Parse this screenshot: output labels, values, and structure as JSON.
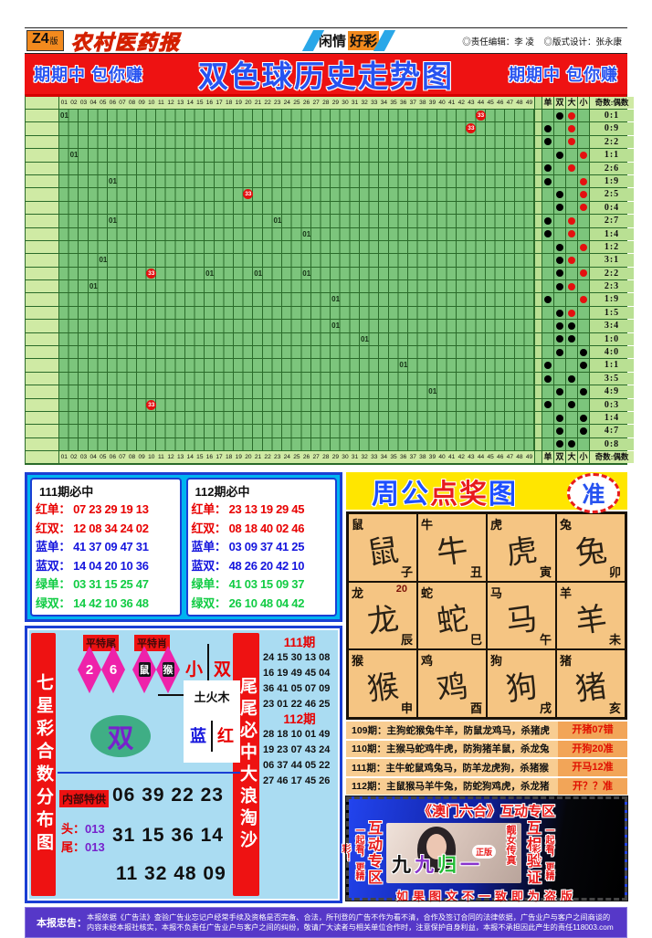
{
  "masthead": {
    "edition": "Z4",
    "edition_suffix": "版",
    "paper_name": "农村医药报",
    "ribbon_left": "闲情",
    "ribbon_right": "好彩",
    "editor": "◎责任编辑：李 凌",
    "designer": "◎版式设计：张永康"
  },
  "banner": {
    "side_left": "期期中 包你赚",
    "title": "双色球历史走势图",
    "side_right": "期期中 包你赚",
    "bg_color": "#ee1212",
    "text_color": "#2753f0"
  },
  "grid": {
    "columns": [
      "01",
      "02",
      "03",
      "04",
      "05",
      "06",
      "07",
      "08",
      "09",
      "10",
      "11",
      "12",
      "13",
      "14",
      "15",
      "16",
      "17",
      "18",
      "19",
      "20",
      "21",
      "22",
      "23",
      "24",
      "25",
      "26",
      "27",
      "28",
      "29",
      "30",
      "31",
      "32",
      "33",
      "34",
      "35",
      "36",
      "37",
      "38",
      "39",
      "40",
      "41",
      "42",
      "43",
      "44",
      "45",
      "46",
      "47",
      "48",
      "49"
    ],
    "right_headers": [
      "单",
      "双",
      "大",
      "小"
    ],
    "ratio_header": "奇数:偶数",
    "mark_text": "01",
    "ball_text": "33",
    "rows": [
      {
        "oe": "双",
        "sz": "大",
        "szc": "r",
        "ratio": "0:1",
        "marks": [
          {
            "c": 1,
            "t": "t"
          },
          {
            "c": 44,
            "t": "b"
          }
        ]
      },
      {
        "oe": "单",
        "sz": "大",
        "szc": "r",
        "ratio": "0:9",
        "marks": [
          {
            "c": 43,
            "t": "b"
          }
        ]
      },
      {
        "oe": "单",
        "sz": "大",
        "szc": "r",
        "ratio": "2:2",
        "marks": []
      },
      {
        "oe": "双",
        "sz": "小",
        "szc": "r",
        "ratio": "1:1",
        "marks": [
          {
            "c": 2,
            "t": "t"
          }
        ]
      },
      {
        "oe": "单",
        "sz": "大",
        "szc": "r",
        "ratio": "2:6",
        "marks": []
      },
      {
        "oe": "单",
        "sz": "小",
        "szc": "r",
        "ratio": "1:9",
        "marks": [
          {
            "c": 6,
            "t": "t"
          }
        ]
      },
      {
        "oe": "双",
        "sz": "小",
        "szc": "r",
        "ratio": "2:5",
        "marks": [
          {
            "c": 20,
            "t": "b"
          }
        ]
      },
      {
        "oe": "双",
        "sz": "小",
        "szc": "r",
        "ratio": "0:4",
        "marks": []
      },
      {
        "oe": "单",
        "sz": "大",
        "szc": "r",
        "ratio": "2:7",
        "marks": [
          {
            "c": 6,
            "t": "t"
          },
          {
            "c": 23,
            "t": "t"
          }
        ]
      },
      {
        "oe": "单",
        "sz": "大",
        "szc": "r",
        "ratio": "1:4",
        "marks": [
          {
            "c": 26,
            "t": "t"
          }
        ]
      },
      {
        "oe": "双",
        "sz": "小",
        "szc": "r",
        "ratio": "1:2",
        "marks": []
      },
      {
        "oe": "双",
        "sz": "大",
        "szc": "r",
        "ratio": "3:1",
        "marks": [
          {
            "c": 5,
            "t": "t"
          }
        ]
      },
      {
        "oe": "双",
        "sz": "小",
        "szc": "r",
        "ratio": "2:2",
        "marks": [
          {
            "c": 10,
            "t": "b"
          },
          {
            "c": 16,
            "t": "t"
          },
          {
            "c": 21,
            "t": "t"
          },
          {
            "c": 26,
            "t": "t"
          }
        ]
      },
      {
        "oe": "双",
        "sz": "大",
        "szc": "r",
        "ratio": "2:3",
        "marks": [
          {
            "c": 4,
            "t": "t"
          }
        ]
      },
      {
        "oe": "单",
        "sz": "小",
        "szc": "r",
        "ratio": "1:9",
        "marks": [
          {
            "c": 29,
            "t": "t"
          }
        ]
      },
      {
        "oe": "双",
        "sz": "大",
        "szc": "r",
        "ratio": "1:5",
        "marks": []
      },
      {
        "oe": "双",
        "sz": "大",
        "szc": "k",
        "ratio": "3:4",
        "marks": [
          {
            "c": 29,
            "t": "t"
          }
        ]
      },
      {
        "oe": "双",
        "sz": "大",
        "szc": "k",
        "ratio": "1:0",
        "marks": [
          {
            "c": 32,
            "t": "t"
          }
        ]
      },
      {
        "oe": "双",
        "sz": "小",
        "szc": "k",
        "ratio": "4:0",
        "marks": []
      },
      {
        "oe": "单",
        "sz": "小",
        "szc": "k",
        "ratio": "1:1",
        "marks": [
          {
            "c": 36,
            "t": "t"
          }
        ]
      },
      {
        "oe": "单",
        "sz": "大",
        "szc": "k",
        "ratio": "3:5",
        "marks": []
      },
      {
        "oe": "双",
        "sz": "小",
        "szc": "k",
        "ratio": "4:9",
        "marks": [
          {
            "c": 39,
            "t": "t"
          }
        ]
      },
      {
        "oe": "单",
        "sz": "大",
        "szc": "k",
        "ratio": "0:3",
        "marks": [
          {
            "c": 10,
            "t": "b"
          }
        ]
      },
      {
        "oe": "双",
        "sz": "小",
        "szc": "k",
        "ratio": "1:4",
        "marks": []
      },
      {
        "oe": "双",
        "sz": "小",
        "szc": "k",
        "ratio": "4:7",
        "marks": []
      },
      {
        "oe": "双",
        "sz": "大",
        "szc": "k",
        "ratio": "0:8",
        "marks": []
      }
    ]
  },
  "picks": {
    "boxes": [
      {
        "title": "111期必中",
        "rows": [
          {
            "label": "红单：",
            "nums": "07 23 29 19 13",
            "color": "red"
          },
          {
            "label": "红双：",
            "nums": "12 08 34 24 02",
            "color": "red"
          },
          {
            "label": "蓝单：",
            "nums": "41 37 09 47 31",
            "color": "blue"
          },
          {
            "label": "蓝双：",
            "nums": "14 04 20 10 36",
            "color": "blue"
          },
          {
            "label": "绿单：",
            "nums": "03 31 15 25 47",
            "color": "green"
          },
          {
            "label": "绿双：",
            "nums": "14 42 10 36 48",
            "color": "green"
          }
        ]
      },
      {
        "title": "112期必中",
        "rows": [
          {
            "label": "红单：",
            "nums": "23 13 19 29 45",
            "color": "red"
          },
          {
            "label": "红双：",
            "nums": "08 18 40 02 46",
            "color": "red"
          },
          {
            "label": "蓝单：",
            "nums": "03 09 37 41 25",
            "color": "blue"
          },
          {
            "label": "蓝双：",
            "nums": "48 26 20 42 10",
            "color": "blue"
          },
          {
            "label": "绿单：",
            "nums": "41 03 15 09 37",
            "color": "green"
          },
          {
            "label": "绿双：",
            "nums": "26 10 48 04 42",
            "color": "green"
          }
        ]
      }
    ]
  },
  "zhougong": {
    "title_chars": [
      {
        "ch": "周",
        "color": "#1e4fff"
      },
      {
        "ch": "公",
        "color": "#1e4fff"
      },
      {
        "ch": "点",
        "color": "#e81c1c"
      },
      {
        "ch": "奖",
        "color": "#e81c1c"
      },
      {
        "ch": "图",
        "color": "#1e4fff"
      }
    ],
    "badge": "准",
    "cells": [
      {
        "name": "鼠",
        "branch": "子",
        "extra": ""
      },
      {
        "name": "牛",
        "branch": "丑",
        "extra": ""
      },
      {
        "name": "虎",
        "branch": "寅",
        "extra": ""
      },
      {
        "name": "兔",
        "branch": "卯",
        "extra": ""
      },
      {
        "name": "龙",
        "branch": "辰",
        "extra": "20"
      },
      {
        "name": "蛇",
        "branch": "巳",
        "extra": ""
      },
      {
        "name": "马",
        "branch": "午",
        "extra": ""
      },
      {
        "name": "羊",
        "branch": "未",
        "extra": ""
      },
      {
        "name": "猴",
        "branch": "申",
        "extra": ""
      },
      {
        "name": "鸡",
        "branch": "酉",
        "extra": ""
      },
      {
        "name": "狗",
        "branch": "戌",
        "extra": ""
      },
      {
        "name": "猪",
        "branch": "亥",
        "extra": ""
      }
    ]
  },
  "predictions": [
    {
      "body": "109期：主狗蛇猴兔牛羊，防鼠龙鸡马，杀猪虎",
      "result": "开猪07错"
    },
    {
      "body": "110期：主猴马蛇鸡牛虎，防狗猪羊鼠，杀龙兔",
      "result": "开狗20准"
    },
    {
      "body": "111期：主牛蛇鼠鸡兔马，防羊龙虎狗，杀猪猴",
      "result": "开马12准"
    },
    {
      "body": "112期：主鼠猴马羊牛兔，防蛇狗鸡虎，杀龙猪",
      "result": "开？？准"
    }
  ],
  "qixing": {
    "left_banner": "七星彩合数分布图",
    "tag1": "平特尾",
    "tag2": "平特肖",
    "diamonds": [
      {
        "text": "2",
        "boxed": false
      },
      {
        "text": "6",
        "boxed": false
      },
      {
        "text": "鼠",
        "boxed": true
      },
      {
        "text": "猴",
        "boxed": true
      }
    ],
    "xiao": "小",
    "shuang": "双",
    "elements": "土火木",
    "lan": "蓝",
    "hong": "红",
    "oval": "双",
    "neibu_label": "内部特供",
    "neibu_nums": "06 39 22 23",
    "tou_label": "头：",
    "tou_val": "013",
    "wei_label": "尾：",
    "wei_val": "013",
    "nums2": "31 15 36 14",
    "nums3": "11 32 48 09",
    "mid_banner": "尾尾必中大浪淘沙",
    "col111_label": "111期",
    "col111": [
      "24 15 30 13 08",
      "16 19 49 45 04",
      "36 41 05 07 09",
      "23 01 22 46 25"
    ],
    "col112_label": "112期",
    "col112": [
      "28 18 10 01 49",
      "19 23 07 43 24",
      "06 37 44 05 22",
      "27 46 17 45 26"
    ]
  },
  "macau": {
    "title": "《澳门六合》互动专区",
    "left_small": "一起看，更精彩！",
    "left_big": "互动专区",
    "right_big": "互相验证",
    "right_small": "一起看，更精彩！",
    "photo_vert": "靓女传真",
    "photo_badge": "正版",
    "jiu_chars": [
      {
        "ch": "九",
        "color": "#101010"
      },
      {
        "ch": "九",
        "color": "#8833cc"
      },
      {
        "ch": "归",
        "color": "#22bb33"
      },
      {
        "ch": "一",
        "color": "#8833cc"
      }
    ],
    "bottom": "如果图文不一致即为盗版"
  },
  "disclaimer": {
    "label": "本报忠告：",
    "text": "本报依据《广告法》查验广告业忘记户经常手续及资格是否完备、合法，所刊登的广告不作为看不清，合作及签订合同的法律依据，广告业户与客户之间商谈的内容未经本报社核实，本报不负责任广告业户与客户之间的纠纷，敬请广大读者与相关单位合作时，注意保护自身利益，本报不承担因此产生的责任118003.com"
  }
}
